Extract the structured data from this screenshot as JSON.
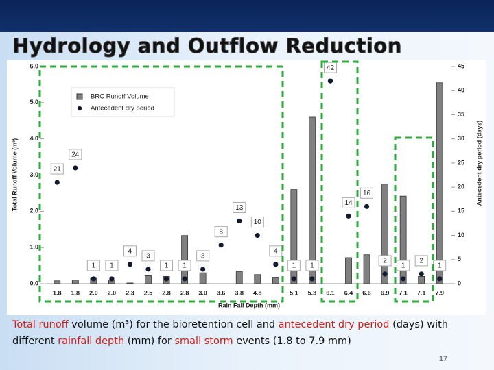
{
  "slide": {
    "title": "Hydrology and Outflow Reduction",
    "caption": [
      {
        "text": "Total runoff",
        "color": "#d0201a"
      },
      {
        "text": " volume (m³) for the bioretention cell and ",
        "color": "#111111"
      },
      {
        "text": "antecedent dry period",
        "color": "#d0201a"
      },
      {
        "text": " (days) with different ",
        "color": "#111111"
      },
      {
        "text": "rainfall depth",
        "color": "#d0201a"
      },
      {
        "text": " (mm) for ",
        "color": "#111111"
      },
      {
        "text": "small storm",
        "color": "#d0201a"
      },
      {
        "text": " events (1.8 to 7.9 mm)",
        "color": "#111111"
      }
    ],
    "page_number": "17"
  },
  "chart_data": {
    "type": "bar",
    "x_label": "Rain Fall Depth (mm)",
    "y_label": "Total Runoff Volume (m³)",
    "y2_label": "Antecedent dry period (days)",
    "categories": [
      "1.8",
      "1.8",
      "2.0",
      "2.0",
      "2.3",
      "2.5",
      "2.8",
      "2.8",
      "3.0",
      "3.6",
      "3.8",
      "4.8",
      null,
      "5.1",
      "5.3",
      "6.1",
      "6.4",
      "6.6",
      "6.9",
      "7.1",
      "7.1",
      "7.9"
    ],
    "series": [
      {
        "name": "BRC Runoff Volume",
        "type": "bar",
        "color": "#808080",
        "values": [
          0.08,
          0.1,
          0.15,
          0.1,
          0.02,
          0.22,
          0.2,
          1.33,
          0.3,
          0,
          0.33,
          0.25,
          0.16,
          2.6,
          4.6,
          0,
          0.72,
          0.8,
          2.75,
          2.42,
          0.2,
          5.55
        ]
      },
      {
        "name": "Antecedent dry period",
        "type": "scatter",
        "axis": "y2",
        "color": "#111a2e",
        "values": [
          21,
          24,
          1,
          1,
          4,
          3,
          1,
          1,
          3,
          8,
          13,
          10,
          4,
          1,
          1,
          42,
          14,
          16,
          2,
          1,
          2,
          1
        ]
      }
    ],
    "ylim": [
      0,
      6
    ],
    "yticks": [
      {
        "value": 0,
        "label": "0.0"
      },
      {
        "value": 1,
        "label": "1.0"
      },
      {
        "value": 2,
        "label": "2.0"
      },
      {
        "value": 3,
        "label": "3.0"
      },
      {
        "value": 4,
        "label": "4.0"
      },
      {
        "value": 5,
        "label": "5.0"
      },
      {
        "value": 6,
        "label": "6.0"
      }
    ],
    "y2lim": [
      0,
      45
    ],
    "y2ticks": [
      0,
      5,
      10,
      15,
      20,
      25,
      30,
      35,
      40,
      45
    ],
    "legend": "upper left"
  }
}
